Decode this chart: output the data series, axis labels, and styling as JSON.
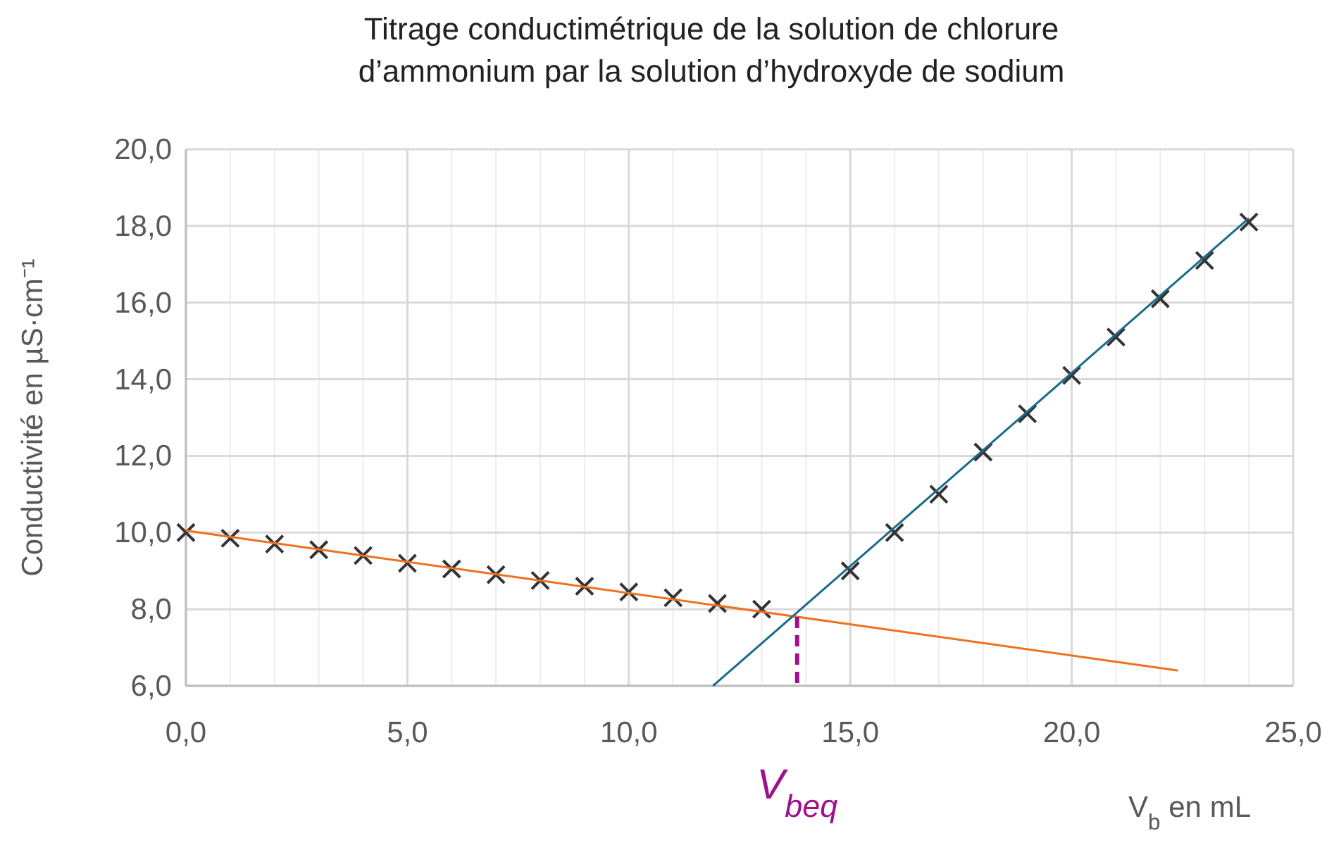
{
  "chart_data": {
    "type": "scatter",
    "title": "Titrage conductimétrique de la solution de chlorure d’ammonium par la solution d’hydroxyde de sodium",
    "xlabel": "V$_{b}$ en mL",
    "ylabel": "Conductivité en µS·cm⁻¹",
    "xlim": [
      0,
      25
    ],
    "ylim": [
      6,
      20
    ],
    "xticks": [
      {
        "value": 0,
        "label": "0,0"
      },
      {
        "value": 5,
        "label": "5,0"
      },
      {
        "value": 10,
        "label": "10,0"
      },
      {
        "value": 15,
        "label": "15,0"
      },
      {
        "value": 20,
        "label": "20,0"
      },
      {
        "value": 25,
        "label": "25,0"
      }
    ],
    "yticks": [
      {
        "value": 6,
        "label": "6,0"
      },
      {
        "value": 8,
        "label": "8,0"
      },
      {
        "value": 10,
        "label": "10,0"
      },
      {
        "value": 12,
        "label": "12,0"
      },
      {
        "value": 14,
        "label": "14,0"
      },
      {
        "value": 16,
        "label": "16,0"
      },
      {
        "value": 18,
        "label": "18,0"
      },
      {
        "value": 20,
        "label": "20,0"
      }
    ],
    "grid": true,
    "marker": "cross",
    "series": [
      {
        "color": "#333333",
        "x": [
          0,
          1,
          2,
          3,
          4,
          5,
          6,
          7,
          8,
          9,
          10,
          11,
          12,
          13,
          15,
          16,
          17,
          18,
          19,
          20,
          21,
          22,
          23,
          24
        ],
        "values": [
          10.0,
          9.85,
          9.7,
          9.55,
          9.4,
          9.2,
          9.05,
          8.9,
          8.75,
          8.6,
          8.45,
          8.3,
          8.15,
          8.0,
          9.0,
          10.0,
          11.0,
          12.1,
          13.1,
          14.1,
          15.1,
          16.1,
          17.1,
          18.1
        ]
      },
      {
        "type": "line",
        "color": "#f07020",
        "line_style": "solid",
        "marker": "none",
        "x": [
          0,
          22.4
        ],
        "values": [
          10.05,
          6.4
        ]
      },
      {
        "type": "line",
        "color": "#1a6a8a",
        "line_style": "solid",
        "marker": "none",
        "x": [
          11.9,
          24
        ],
        "values": [
          6.0,
          18.2
        ]
      },
      {
        "type": "line",
        "color": "#a0108a",
        "line_style": "dashed",
        "marker": "none",
        "x": [
          13.8,
          13.8
        ],
        "values": [
          7.8,
          6.0
        ]
      }
    ],
    "annotations": [
      {
        "text": "V$_{beq}$",
        "x": 13.8,
        "y": 6.0
      }
    ]
  }
}
